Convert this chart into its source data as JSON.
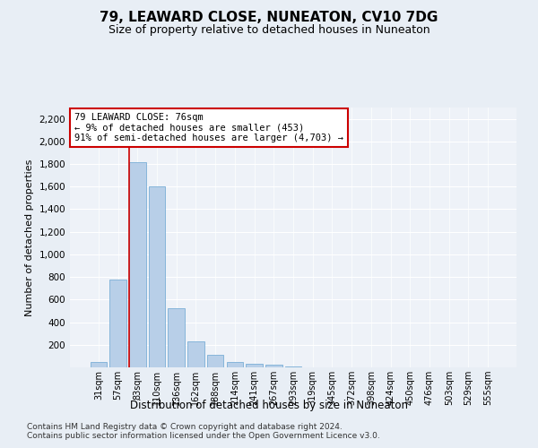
{
  "title": "79, LEAWARD CLOSE, NUNEATON, CV10 7DG",
  "subtitle": "Size of property relative to detached houses in Nuneaton",
  "xlabel": "Distribution of detached houses by size in Nuneaton",
  "ylabel": "Number of detached properties",
  "categories": [
    "31sqm",
    "57sqm",
    "83sqm",
    "110sqm",
    "136sqm",
    "162sqm",
    "188sqm",
    "214sqm",
    "241sqm",
    "267sqm",
    "293sqm",
    "319sqm",
    "345sqm",
    "372sqm",
    "398sqm",
    "424sqm",
    "450sqm",
    "476sqm",
    "503sqm",
    "529sqm",
    "555sqm"
  ],
  "values": [
    50,
    780,
    1820,
    1600,
    520,
    230,
    110,
    50,
    30,
    20,
    10,
    3,
    1,
    1,
    0,
    0,
    0,
    0,
    0,
    0,
    0
  ],
  "bar_color": "#b8cfe8",
  "bar_edge_color": "#7aaed6",
  "marker_line_color": "#cc0000",
  "annotation_text": "79 LEAWARD CLOSE: 76sqm\n← 9% of detached houses are smaller (453)\n91% of semi-detached houses are larger (4,703) →",
  "annotation_box_color": "#ffffff",
  "annotation_box_edge_color": "#cc0000",
  "ylim": [
    0,
    2300
  ],
  "yticks": [
    0,
    200,
    400,
    600,
    800,
    1000,
    1200,
    1400,
    1600,
    1800,
    2000,
    2200
  ],
  "bg_color": "#e8eef5",
  "plot_bg_color": "#eef2f8",
  "footer1": "Contains HM Land Registry data © Crown copyright and database right 2024.",
  "footer2": "Contains public sector information licensed under the Open Government Licence v3.0.",
  "title_fontsize": 11,
  "subtitle_fontsize": 9,
  "annotation_fontsize": 7.5,
  "footer_fontsize": 6.5,
  "ylabel_fontsize": 8,
  "xlabel_fontsize": 8.5,
  "ytick_fontsize": 7.5,
  "xtick_fontsize": 7
}
